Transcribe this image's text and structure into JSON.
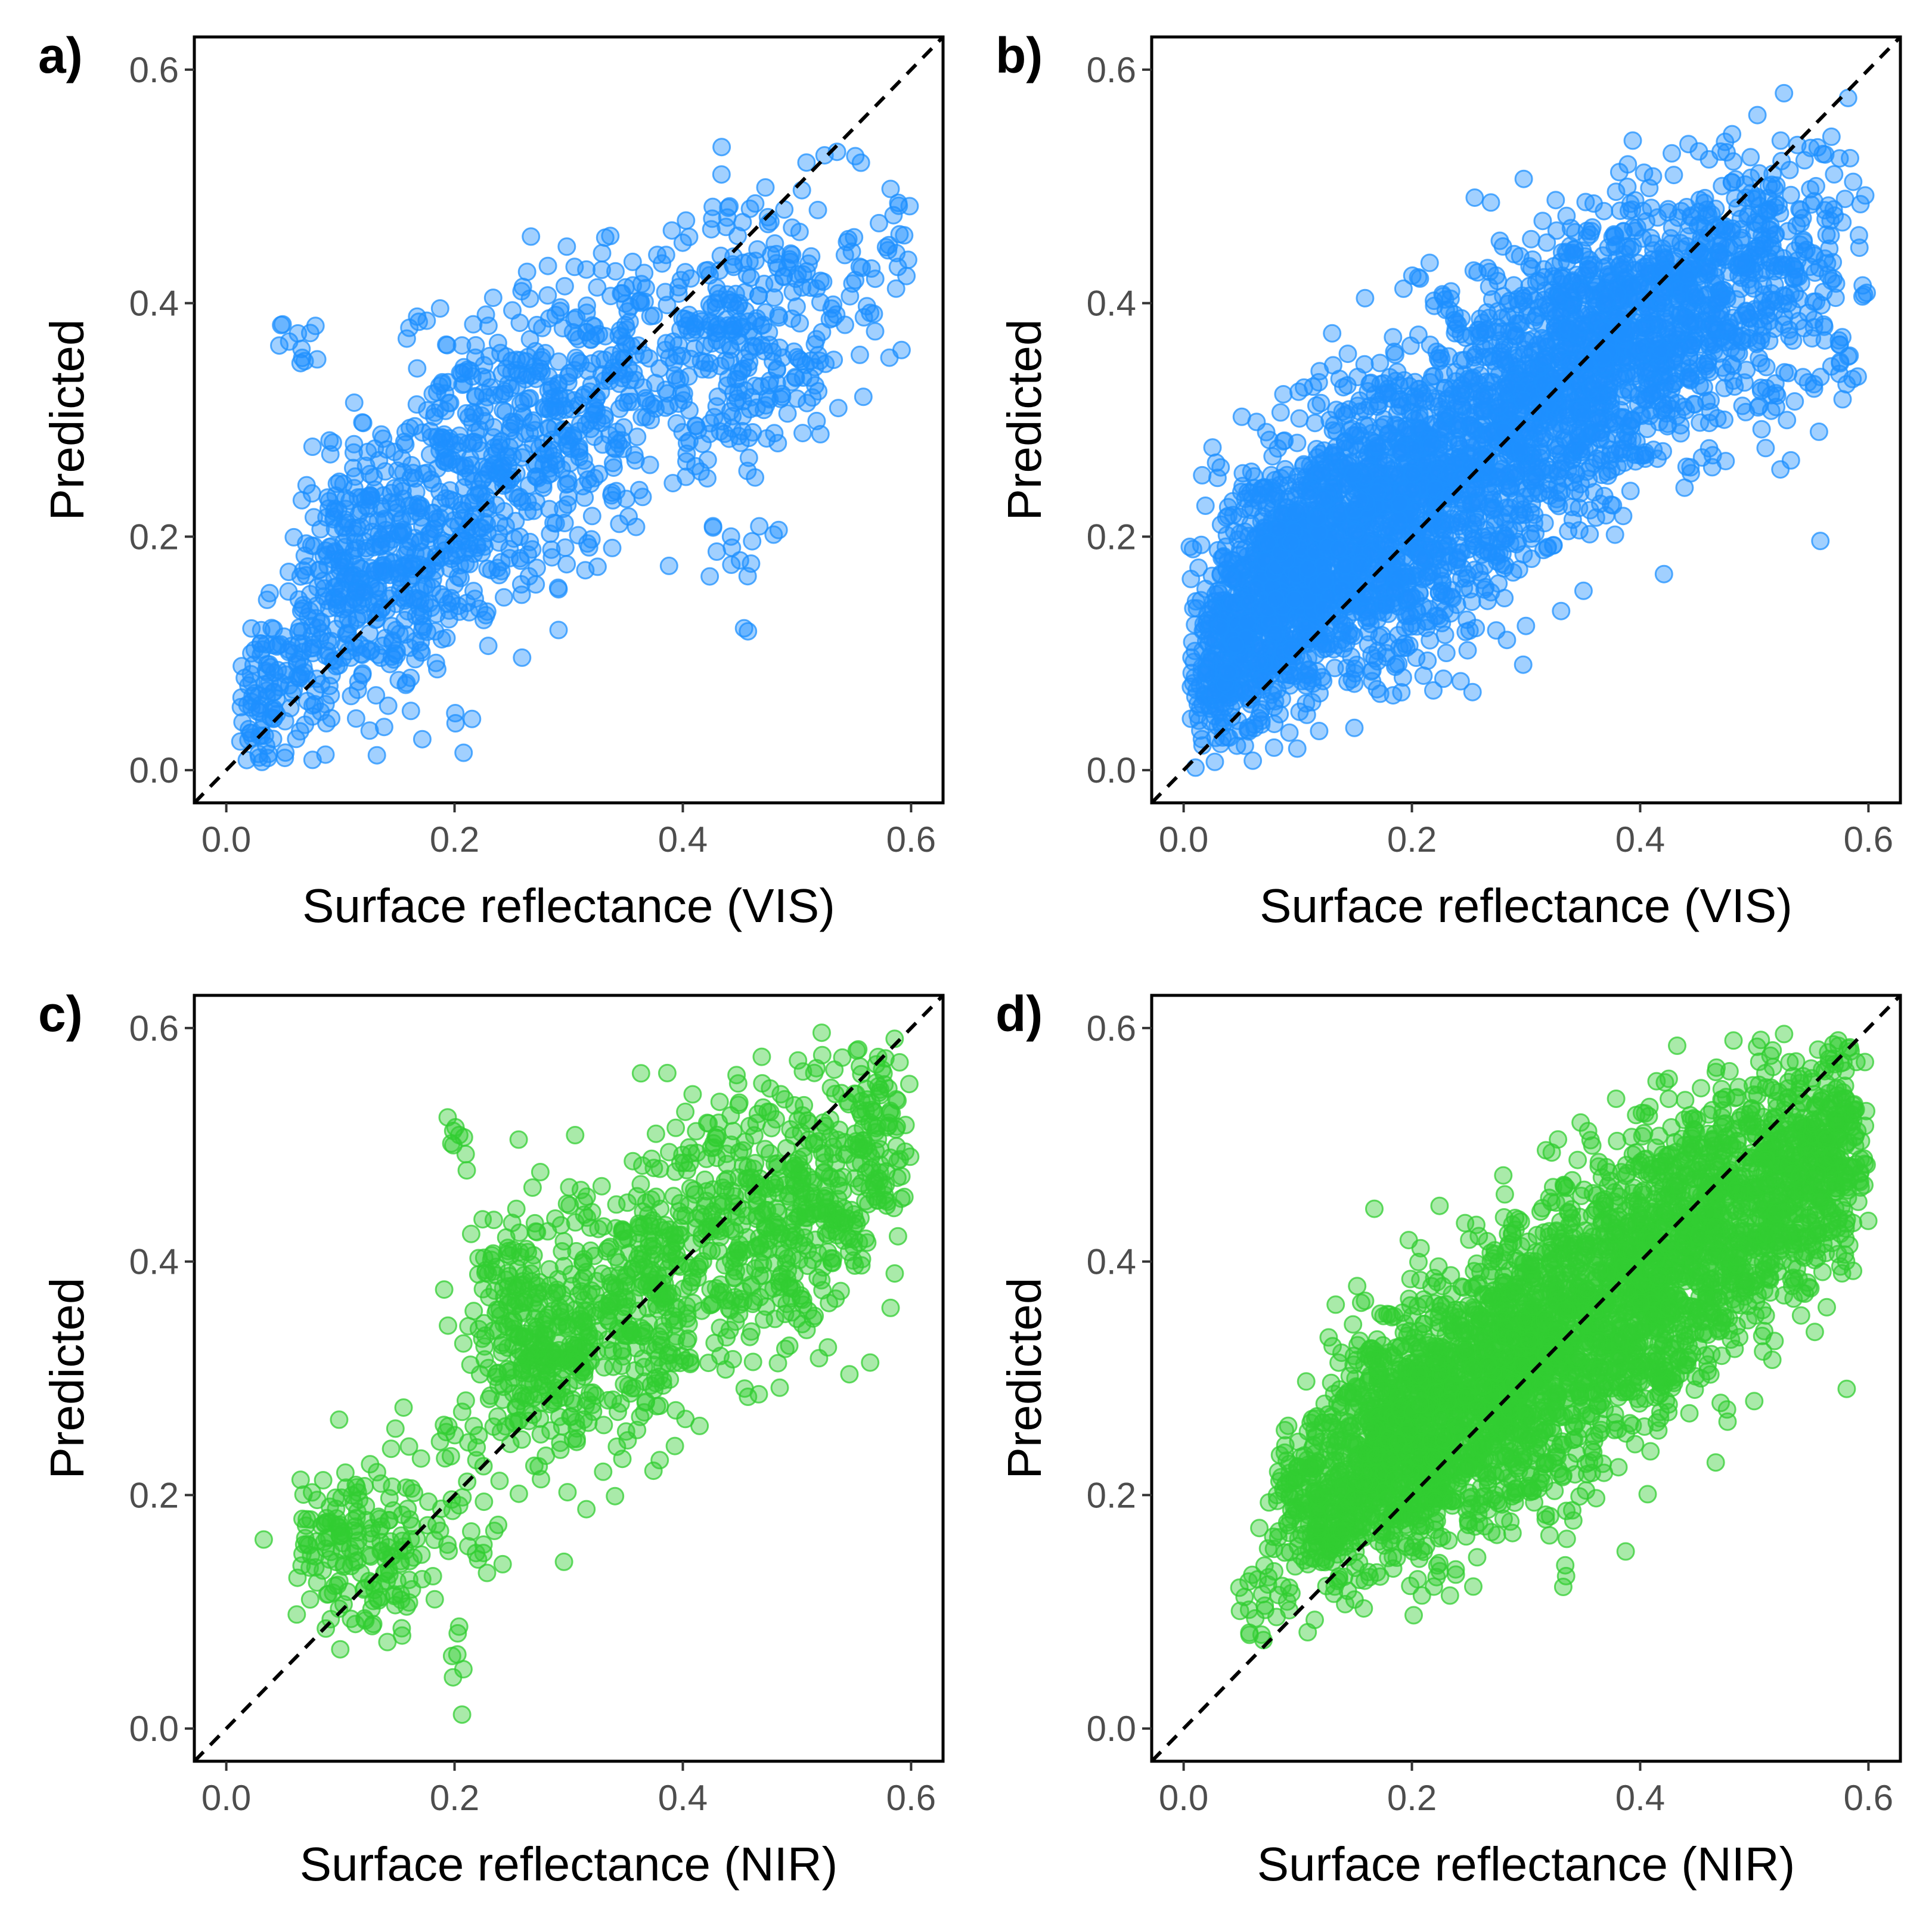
{
  "chart_data": [
    {
      "type": "scatter",
      "panel_label": "a)",
      "xlabel": "Surface reflectance (VIS)",
      "ylabel": "Predicted",
      "xlim": [
        -0.028,
        0.628
      ],
      "ylim": [
        -0.028,
        0.628
      ],
      "xticks": [
        "0.0",
        "0.2",
        "0.4",
        "0.6"
      ],
      "yticks": [
        "0.0",
        "0.2",
        "0.4",
        "0.6"
      ],
      "reference_line": "y = x",
      "grid": false,
      "point_count_approx": 1500,
      "color": "#1E90FF",
      "clusters": [
        {
          "x": 0.03,
          "y": 0.06,
          "sx": 0.012,
          "sy": 0.035,
          "n": 70
        },
        {
          "x": 0.07,
          "y": 0.09,
          "sx": 0.02,
          "sy": 0.04,
          "n": 80
        },
        {
          "x": 0.11,
          "y": 0.17,
          "sx": 0.025,
          "sy": 0.05,
          "n": 220
        },
        {
          "x": 0.16,
          "y": 0.17,
          "sx": 0.025,
          "sy": 0.055,
          "n": 160
        },
        {
          "x": 0.2,
          "y": 0.25,
          "sx": 0.03,
          "sy": 0.07,
          "n": 180
        },
        {
          "x": 0.25,
          "y": 0.27,
          "sx": 0.03,
          "sy": 0.07,
          "n": 160
        },
        {
          "x": 0.3,
          "y": 0.3,
          "sx": 0.03,
          "sy": 0.06,
          "n": 160
        },
        {
          "x": 0.35,
          "y": 0.33,
          "sx": 0.03,
          "sy": 0.06,
          "n": 110
        },
        {
          "x": 0.42,
          "y": 0.38,
          "sx": 0.035,
          "sy": 0.06,
          "n": 150
        },
        {
          "x": 0.47,
          "y": 0.37,
          "sx": 0.025,
          "sy": 0.06,
          "n": 100
        },
        {
          "x": 0.52,
          "y": 0.39,
          "sx": 0.025,
          "sy": 0.07,
          "n": 60
        },
        {
          "x": 0.58,
          "y": 0.44,
          "sx": 0.015,
          "sy": 0.05,
          "n": 30
        },
        {
          "x": 0.06,
          "y": 0.365,
          "sx": 0.015,
          "sy": 0.012,
          "n": 12
        },
        {
          "x": 0.45,
          "y": 0.18,
          "sx": 0.04,
          "sy": 0.03,
          "n": 14
        }
      ]
    },
    {
      "type": "scatter",
      "panel_label": "b)",
      "xlabel": "Surface reflectance (VIS)",
      "ylabel": "Predicted",
      "xlim": [
        -0.028,
        0.628
      ],
      "ylim": [
        -0.028,
        0.628
      ],
      "xticks": [
        "0.0",
        "0.2",
        "0.4",
        "0.6"
      ],
      "yticks": [
        "0.0",
        "0.2",
        "0.4",
        "0.6"
      ],
      "reference_line": "y = x",
      "grid": false,
      "point_count_approx": 4000,
      "color": "#1E90FF",
      "clusters": [
        {
          "x": 0.04,
          "y": 0.1,
          "sx": 0.02,
          "sy": 0.04,
          "n": 300
        },
        {
          "x": 0.09,
          "y": 0.16,
          "sx": 0.03,
          "sy": 0.05,
          "n": 700
        },
        {
          "x": 0.15,
          "y": 0.2,
          "sx": 0.035,
          "sy": 0.06,
          "n": 600
        },
        {
          "x": 0.21,
          "y": 0.24,
          "sx": 0.035,
          "sy": 0.06,
          "n": 500
        },
        {
          "x": 0.28,
          "y": 0.3,
          "sx": 0.04,
          "sy": 0.065,
          "n": 550
        },
        {
          "x": 0.35,
          "y": 0.35,
          "sx": 0.035,
          "sy": 0.06,
          "n": 550
        },
        {
          "x": 0.42,
          "y": 0.39,
          "sx": 0.035,
          "sy": 0.055,
          "n": 450
        },
        {
          "x": 0.5,
          "y": 0.42,
          "sx": 0.035,
          "sy": 0.06,
          "n": 300
        },
        {
          "x": 0.57,
          "y": 0.44,
          "sx": 0.02,
          "sy": 0.06,
          "n": 60
        }
      ]
    },
    {
      "type": "scatter",
      "panel_label": "c)",
      "xlabel": "Surface reflectance (NIR)",
      "ylabel": "Predicted",
      "xlim": [
        -0.028,
        0.628
      ],
      "ylim": [
        -0.028,
        0.628
      ],
      "xticks": [
        "0.0",
        "0.2",
        "0.4",
        "0.6"
      ],
      "yticks": [
        "0.0",
        "0.2",
        "0.4",
        "0.6"
      ],
      "reference_line": "y = x",
      "grid": false,
      "point_count_approx": 1500,
      "color": "#32CD32",
      "clusters": [
        {
          "x": 0.1,
          "y": 0.16,
          "sx": 0.025,
          "sy": 0.035,
          "n": 100
        },
        {
          "x": 0.14,
          "y": 0.15,
          "sx": 0.02,
          "sy": 0.04,
          "n": 80
        },
        {
          "x": 0.2,
          "y": 0.2,
          "sx": 0.02,
          "sy": 0.05,
          "n": 40
        },
        {
          "x": 0.26,
          "y": 0.33,
          "sx": 0.025,
          "sy": 0.055,
          "n": 220
        },
        {
          "x": 0.31,
          "y": 0.34,
          "sx": 0.025,
          "sy": 0.06,
          "n": 200
        },
        {
          "x": 0.37,
          "y": 0.36,
          "sx": 0.025,
          "sy": 0.06,
          "n": 200
        },
        {
          "x": 0.43,
          "y": 0.43,
          "sx": 0.03,
          "sy": 0.06,
          "n": 180
        },
        {
          "x": 0.48,
          "y": 0.44,
          "sx": 0.025,
          "sy": 0.06,
          "n": 160
        },
        {
          "x": 0.53,
          "y": 0.47,
          "sx": 0.025,
          "sy": 0.06,
          "n": 150
        },
        {
          "x": 0.57,
          "y": 0.5,
          "sx": 0.015,
          "sy": 0.05,
          "n": 100
        },
        {
          "x": 0.2,
          "y": 0.5,
          "sx": 0.005,
          "sy": 0.012,
          "n": 8
        },
        {
          "x": 0.2,
          "y": 0.05,
          "sx": 0.005,
          "sy": 0.02,
          "n": 6
        }
      ]
    },
    {
      "type": "scatter",
      "panel_label": "d)",
      "xlabel": "Surface reflectance (NIR)",
      "ylabel": "Predicted",
      "xlim": [
        -0.028,
        0.628
      ],
      "ylim": [
        -0.028,
        0.628
      ],
      "xticks": [
        "0.0",
        "0.2",
        "0.4",
        "0.6"
      ],
      "yticks": [
        "0.0",
        "0.2",
        "0.4",
        "0.6"
      ],
      "reference_line": "y = x",
      "grid": false,
      "point_count_approx": 4000,
      "color": "#32CD32",
      "clusters": [
        {
          "x": 0.12,
          "y": 0.19,
          "sx": 0.02,
          "sy": 0.04,
          "n": 250
        },
        {
          "x": 0.18,
          "y": 0.24,
          "sx": 0.03,
          "sy": 0.05,
          "n": 550
        },
        {
          "x": 0.24,
          "y": 0.28,
          "sx": 0.035,
          "sy": 0.055,
          "n": 650
        },
        {
          "x": 0.31,
          "y": 0.32,
          "sx": 0.035,
          "sy": 0.06,
          "n": 650
        },
        {
          "x": 0.38,
          "y": 0.37,
          "sx": 0.035,
          "sy": 0.06,
          "n": 600
        },
        {
          "x": 0.45,
          "y": 0.42,
          "sx": 0.035,
          "sy": 0.06,
          "n": 550
        },
        {
          "x": 0.52,
          "y": 0.47,
          "sx": 0.03,
          "sy": 0.055,
          "n": 450
        },
        {
          "x": 0.57,
          "y": 0.5,
          "sx": 0.015,
          "sy": 0.045,
          "n": 200
        },
        {
          "x": 0.07,
          "y": 0.12,
          "sx": 0.01,
          "sy": 0.02,
          "n": 25
        }
      ]
    }
  ]
}
